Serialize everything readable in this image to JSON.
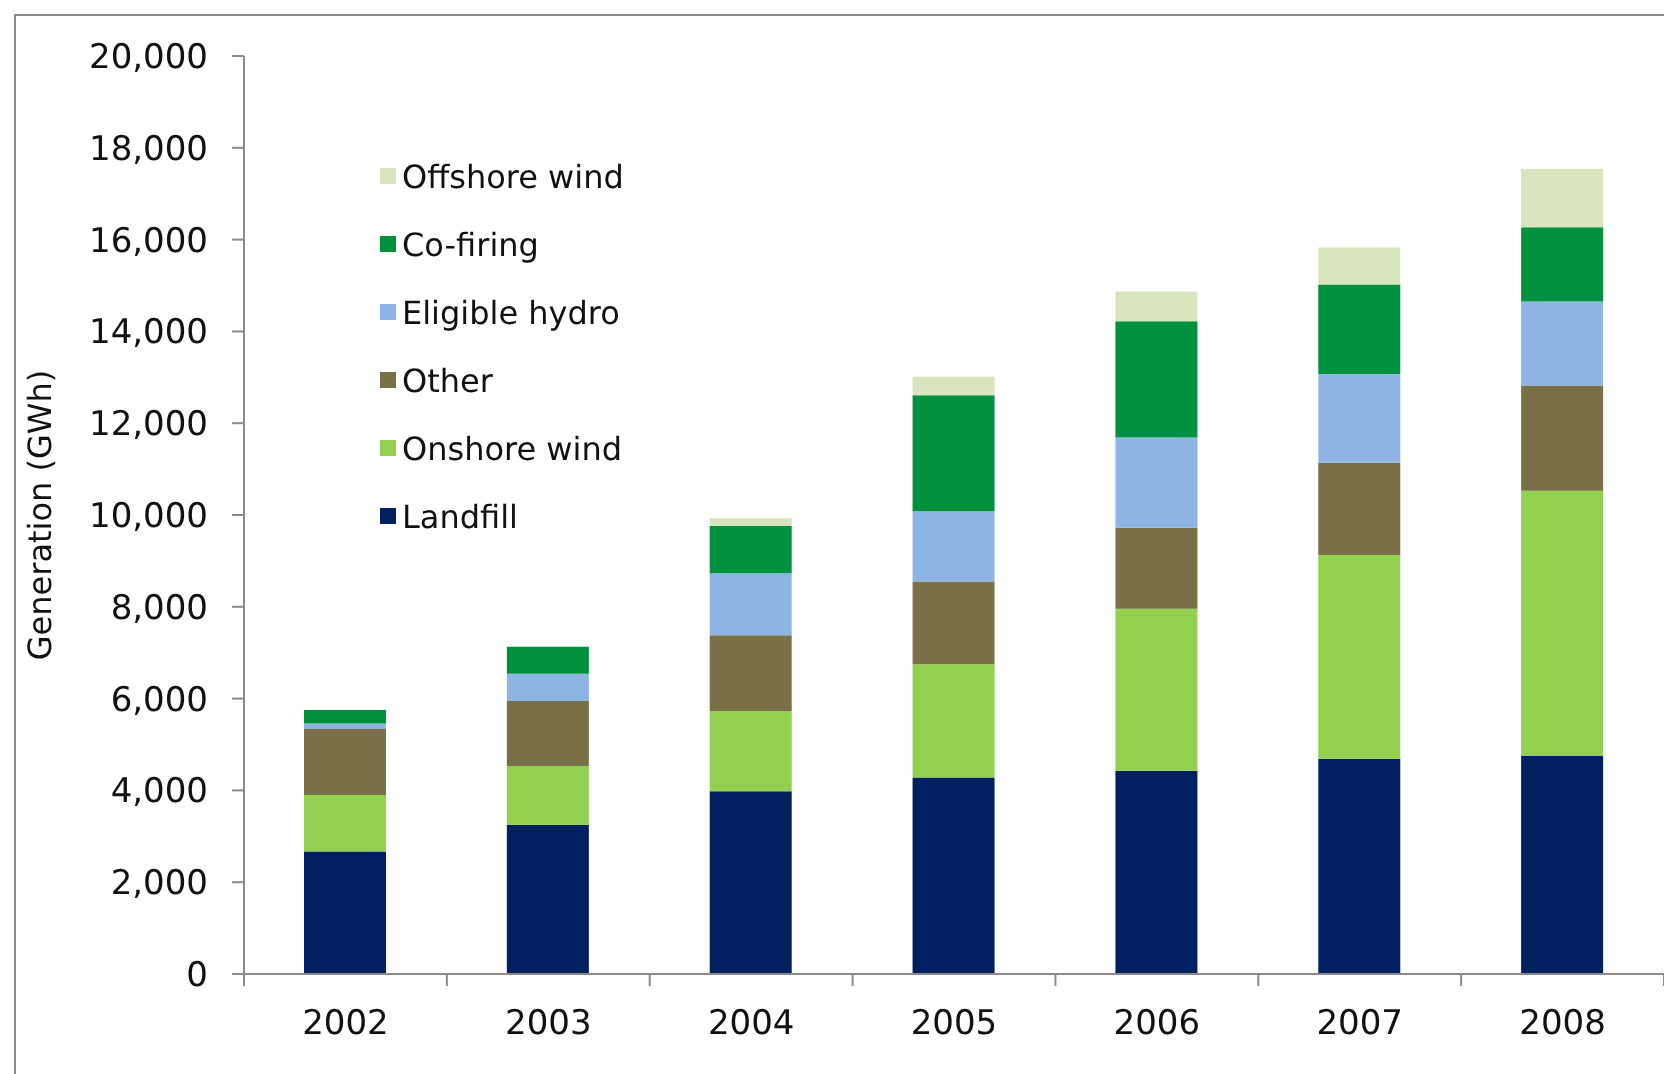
{
  "chart_data": {
    "type": "bar",
    "stacked": true,
    "ylabel": "Generation (GWh)",
    "categories": [
      "2002",
      "2003",
      "2004",
      "2005",
      "2006",
      "2007",
      "2008"
    ],
    "series": [
      {
        "name": "Landfill",
        "color": "#002060",
        "values": [
          2670,
          3250,
          3980,
          4280,
          4430,
          4690,
          4750
        ]
      },
      {
        "name": "Onshore wind",
        "color": "#92d050",
        "values": [
          1230,
          1280,
          1750,
          2470,
          3530,
          4440,
          5780
        ]
      },
      {
        "name": "Other",
        "color": "#7a7048",
        "values": [
          1440,
          1420,
          1650,
          1800,
          1760,
          2010,
          2290
        ]
      },
      {
        "name": "Eligible hydro",
        "color": "#8eb4e3",
        "values": [
          120,
          590,
          1350,
          1530,
          1970,
          1930,
          1830
        ]
      },
      {
        "name": "Co-firing",
        "color": "#00913f",
        "values": [
          290,
          590,
          1030,
          2530,
          2530,
          1950,
          1620
        ]
      },
      {
        "name": "Offshore wind",
        "color": "#d7e4bd",
        "values": [
          0,
          0,
          170,
          400,
          650,
          810,
          1270
        ]
      }
    ],
    "ylim": [
      0,
      20000
    ],
    "yticks": [
      0,
      {
        "value": 2000,
        "label": "2,000"
      },
      {
        "value": 4000,
        "label": "4,000"
      },
      {
        "value": 6000,
        "label": "6,000"
      },
      {
        "value": 8000,
        "label": "8,000"
      },
      {
        "value": 10000,
        "label": "10,000"
      },
      {
        "value": 12000,
        "label": "12,000"
      },
      {
        "value": 14000,
        "label": "14,000"
      },
      {
        "value": 16000,
        "label": "16,000"
      },
      {
        "value": 18000,
        "label": "18,000"
      },
      {
        "value": 20000,
        "label": "20,000"
      }
    ],
    "grid": false,
    "legend": "top left"
  }
}
